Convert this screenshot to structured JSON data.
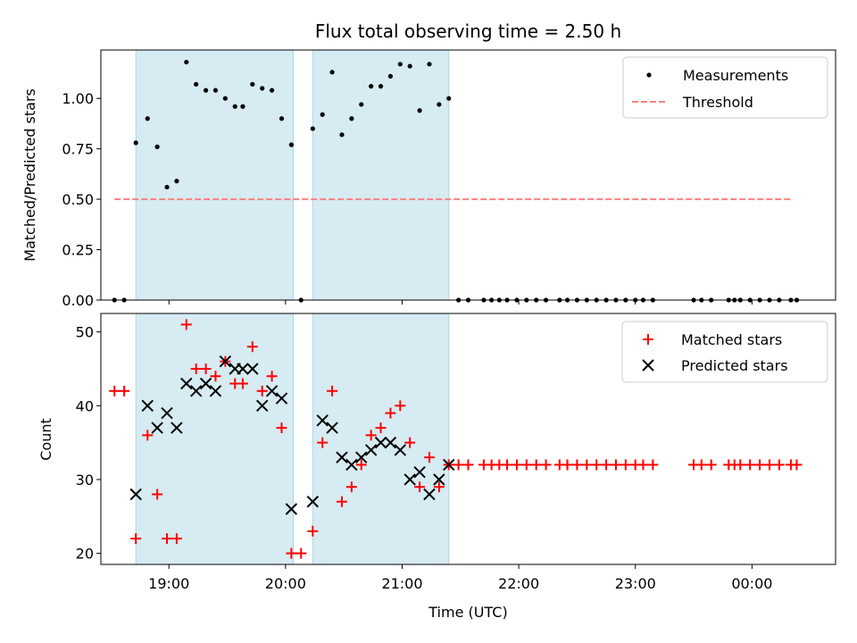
{
  "chart_data": {
    "type": "scatter",
    "title": "Flux total observing time = 2.50 h",
    "xlabel": "Time (UTC)",
    "x_range": [
      "18:25",
      "00:43"
    ],
    "x_ticks": [
      "19:00",
      "20:00",
      "21:00",
      "22:00",
      "23:00",
      "00:00"
    ],
    "observing_windows": [
      [
        "18:43",
        "20:04"
      ],
      [
        "20:14",
        "21:24"
      ]
    ],
    "panels": [
      {
        "id": "ratio",
        "ylabel": "Matched/Predicted stars",
        "ylim": [
          0,
          1.24
        ],
        "yticks": [
          "0.00",
          "0.25",
          "0.50",
          "0.75",
          "1.00"
        ],
        "legend_position": "upper right",
        "legend": [
          {
            "name": "Measurements",
            "marker": "dot",
            "color": "#000000"
          },
          {
            "name": "Threshold",
            "marker": "dashed-line",
            "color": "#ff7f7f"
          }
        ],
        "threshold": {
          "value": 0.5,
          "x": [
            "18:32",
            "00:20"
          ]
        },
        "measurements": [
          {
            "x": "18:32",
            "y": 0.0
          },
          {
            "x": "18:37",
            "y": 0.0
          },
          {
            "x": "18:43",
            "y": 0.78
          },
          {
            "x": "18:49",
            "y": 0.9
          },
          {
            "x": "18:54",
            "y": 0.76
          },
          {
            "x": "18:59",
            "y": 0.56
          },
          {
            "x": "19:04",
            "y": 0.59
          },
          {
            "x": "19:09",
            "y": 1.18
          },
          {
            "x": "19:14",
            "y": 1.07
          },
          {
            "x": "19:19",
            "y": 1.04
          },
          {
            "x": "19:24",
            "y": 1.04
          },
          {
            "x": "19:29",
            "y": 1.0
          },
          {
            "x": "19:34",
            "y": 0.96
          },
          {
            "x": "19:38",
            "y": 0.96
          },
          {
            "x": "19:43",
            "y": 1.07
          },
          {
            "x": "19:48",
            "y": 1.05
          },
          {
            "x": "19:53",
            "y": 1.04
          },
          {
            "x": "19:58",
            "y": 0.9
          },
          {
            "x": "20:03",
            "y": 0.77
          },
          {
            "x": "20:08",
            "y": 0.0
          },
          {
            "x": "20:14",
            "y": 0.85
          },
          {
            "x": "20:19",
            "y": 0.92
          },
          {
            "x": "20:24",
            "y": 1.13
          },
          {
            "x": "20:29",
            "y": 0.82
          },
          {
            "x": "20:34",
            "y": 0.9
          },
          {
            "x": "20:39",
            "y": 0.97
          },
          {
            "x": "20:44",
            "y": 1.06
          },
          {
            "x": "20:49",
            "y": 1.06
          },
          {
            "x": "20:54",
            "y": 1.11
          },
          {
            "x": "20:59",
            "y": 1.17
          },
          {
            "x": "21:04",
            "y": 1.16
          },
          {
            "x": "21:09",
            "y": 0.94
          },
          {
            "x": "21:14",
            "y": 1.17
          },
          {
            "x": "21:19",
            "y": 0.97
          },
          {
            "x": "21:24",
            "y": 1.0
          },
          {
            "x": "21:29",
            "y": 0.0
          },
          {
            "x": "21:34",
            "y": 0.0
          },
          {
            "x": "21:42",
            "y": 0.0
          },
          {
            "x": "21:46",
            "y": 0.0
          },
          {
            "x": "21:50",
            "y": 0.0
          },
          {
            "x": "21:54",
            "y": 0.0
          },
          {
            "x": "21:59",
            "y": 0.0
          },
          {
            "x": "22:04",
            "y": 0.0
          },
          {
            "x": "22:09",
            "y": 0.0
          },
          {
            "x": "22:14",
            "y": 0.0
          },
          {
            "x": "22:21",
            "y": 0.0
          },
          {
            "x": "22:25",
            "y": 0.0
          },
          {
            "x": "22:30",
            "y": 0.0
          },
          {
            "x": "22:35",
            "y": 0.0
          },
          {
            "x": "22:40",
            "y": 0.0
          },
          {
            "x": "22:45",
            "y": 0.0
          },
          {
            "x": "22:50",
            "y": 0.0
          },
          {
            "x": "22:55",
            "y": 0.0
          },
          {
            "x": "23:00",
            "y": 0.0
          },
          {
            "x": "23:04",
            "y": 0.0
          },
          {
            "x": "23:09",
            "y": 0.0
          },
          {
            "x": "23:30",
            "y": 0.0
          },
          {
            "x": "23:34",
            "y": 0.0
          },
          {
            "x": "23:39",
            "y": 0.0
          },
          {
            "x": "23:48",
            "y": 0.0
          },
          {
            "x": "23:51",
            "y": 0.0
          },
          {
            "x": "23:54",
            "y": 0.0
          },
          {
            "x": "23:59",
            "y": 0.0
          },
          {
            "x": "00:04",
            "y": 0.0
          },
          {
            "x": "00:09",
            "y": 0.0
          },
          {
            "x": "00:14",
            "y": 0.0
          },
          {
            "x": "00:20",
            "y": 0.0
          },
          {
            "x": "00:23",
            "y": 0.0
          }
        ]
      },
      {
        "id": "counts",
        "ylabel": "Count",
        "ylim": [
          18.5,
          52.5
        ],
        "yticks": [
          "20",
          "30",
          "40",
          "50"
        ],
        "legend_position": "upper right",
        "legend": [
          {
            "name": "Matched stars",
            "marker": "plus",
            "color": "#ff0000"
          },
          {
            "name": "Predicted stars",
            "marker": "x",
            "color": "#000000"
          }
        ],
        "matched": [
          {
            "x": "18:32",
            "y": 42
          },
          {
            "x": "18:37",
            "y": 42
          },
          {
            "x": "18:43",
            "y": 22
          },
          {
            "x": "18:49",
            "y": 36
          },
          {
            "x": "18:54",
            "y": 28
          },
          {
            "x": "18:59",
            "y": 22
          },
          {
            "x": "19:04",
            "y": 22
          },
          {
            "x": "19:09",
            "y": 51
          },
          {
            "x": "19:14",
            "y": 45
          },
          {
            "x": "19:19",
            "y": 45
          },
          {
            "x": "19:24",
            "y": 44
          },
          {
            "x": "19:29",
            "y": 46
          },
          {
            "x": "19:34",
            "y": 43
          },
          {
            "x": "19:38",
            "y": 43
          },
          {
            "x": "19:43",
            "y": 48
          },
          {
            "x": "19:48",
            "y": 42
          },
          {
            "x": "19:53",
            "y": 44
          },
          {
            "x": "19:58",
            "y": 37
          },
          {
            "x": "20:03",
            "y": 20
          },
          {
            "x": "20:08",
            "y": 20
          },
          {
            "x": "20:14",
            "y": 23
          },
          {
            "x": "20:19",
            "y": 35
          },
          {
            "x": "20:24",
            "y": 42
          },
          {
            "x": "20:29",
            "y": 27
          },
          {
            "x": "20:34",
            "y": 29
          },
          {
            "x": "20:39",
            "y": 32
          },
          {
            "x": "20:44",
            "y": 36
          },
          {
            "x": "20:49",
            "y": 37
          },
          {
            "x": "20:54",
            "y": 39
          },
          {
            "x": "20:59",
            "y": 40
          },
          {
            "x": "21:04",
            "y": 35
          },
          {
            "x": "21:09",
            "y": 29
          },
          {
            "x": "21:14",
            "y": 33
          },
          {
            "x": "21:19",
            "y": 29
          },
          {
            "x": "21:24",
            "y": 32
          },
          {
            "x": "21:29",
            "y": 32
          },
          {
            "x": "21:34",
            "y": 32
          },
          {
            "x": "21:42",
            "y": 32
          },
          {
            "x": "21:46",
            "y": 32
          },
          {
            "x": "21:50",
            "y": 32
          },
          {
            "x": "21:54",
            "y": 32
          },
          {
            "x": "21:59",
            "y": 32
          },
          {
            "x": "22:04",
            "y": 32
          },
          {
            "x": "22:09",
            "y": 32
          },
          {
            "x": "22:14",
            "y": 32
          },
          {
            "x": "22:21",
            "y": 32
          },
          {
            "x": "22:25",
            "y": 32
          },
          {
            "x": "22:30",
            "y": 32
          },
          {
            "x": "22:35",
            "y": 32
          },
          {
            "x": "22:40",
            "y": 32
          },
          {
            "x": "22:45",
            "y": 32
          },
          {
            "x": "22:50",
            "y": 32
          },
          {
            "x": "22:55",
            "y": 32
          },
          {
            "x": "23:00",
            "y": 32
          },
          {
            "x": "23:04",
            "y": 32
          },
          {
            "x": "23:09",
            "y": 32
          },
          {
            "x": "23:30",
            "y": 32
          },
          {
            "x": "23:34",
            "y": 32
          },
          {
            "x": "23:39",
            "y": 32
          },
          {
            "x": "23:48",
            "y": 32
          },
          {
            "x": "23:51",
            "y": 32
          },
          {
            "x": "23:54",
            "y": 32
          },
          {
            "x": "23:59",
            "y": 32
          },
          {
            "x": "00:04",
            "y": 32
          },
          {
            "x": "00:09",
            "y": 32
          },
          {
            "x": "00:14",
            "y": 32
          },
          {
            "x": "00:20",
            "y": 32
          },
          {
            "x": "00:23",
            "y": 32
          }
        ],
        "predicted": [
          {
            "x": "18:43",
            "y": 28
          },
          {
            "x": "18:49",
            "y": 40
          },
          {
            "x": "18:54",
            "y": 37
          },
          {
            "x": "18:59",
            "y": 39
          },
          {
            "x": "19:04",
            "y": 37
          },
          {
            "x": "19:09",
            "y": 43
          },
          {
            "x": "19:14",
            "y": 42
          },
          {
            "x": "19:19",
            "y": 43
          },
          {
            "x": "19:24",
            "y": 42
          },
          {
            "x": "19:29",
            "y": 46
          },
          {
            "x": "19:34",
            "y": 45
          },
          {
            "x": "19:38",
            "y": 45
          },
          {
            "x": "19:43",
            "y": 45
          },
          {
            "x": "19:48",
            "y": 40
          },
          {
            "x": "19:53",
            "y": 42
          },
          {
            "x": "19:58",
            "y": 41
          },
          {
            "x": "20:03",
            "y": 26
          },
          {
            "x": "20:14",
            "y": 27
          },
          {
            "x": "20:19",
            "y": 38
          },
          {
            "x": "20:24",
            "y": 37
          },
          {
            "x": "20:29",
            "y": 33
          },
          {
            "x": "20:34",
            "y": 32
          },
          {
            "x": "20:39",
            "y": 33
          },
          {
            "x": "20:44",
            "y": 34
          },
          {
            "x": "20:49",
            "y": 35
          },
          {
            "x": "20:54",
            "y": 35
          },
          {
            "x": "20:59",
            "y": 34
          },
          {
            "x": "21:04",
            "y": 30
          },
          {
            "x": "21:09",
            "y": 31
          },
          {
            "x": "21:14",
            "y": 28
          },
          {
            "x": "21:19",
            "y": 30
          },
          {
            "x": "21:24",
            "y": 32
          }
        ]
      }
    ]
  }
}
